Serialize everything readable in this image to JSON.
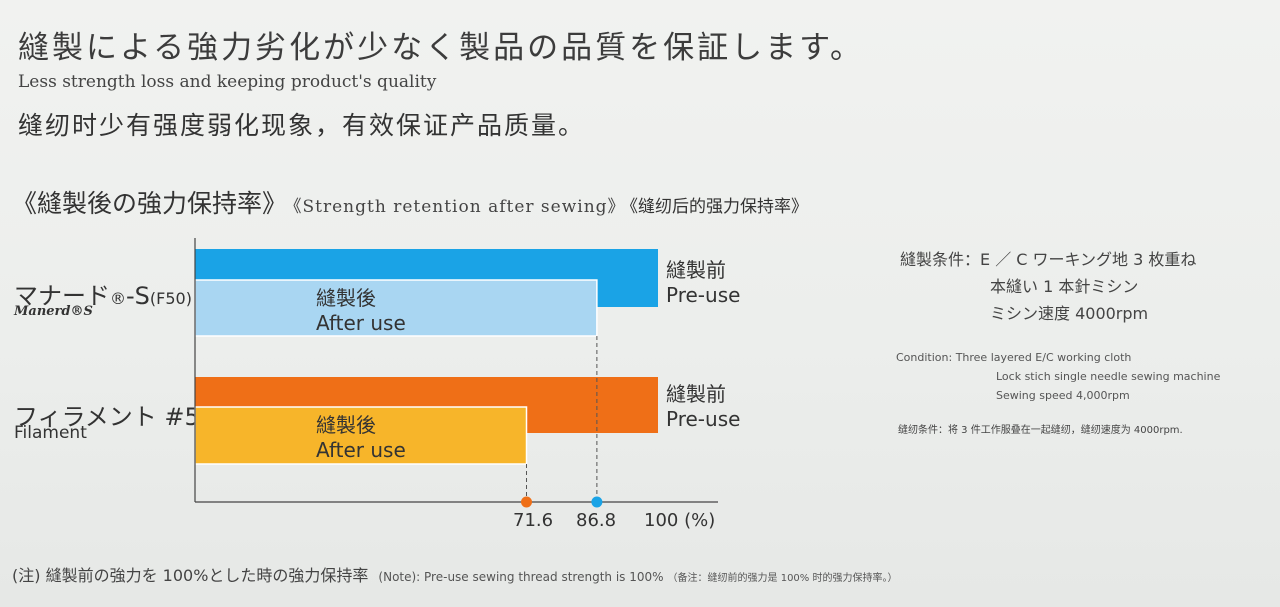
{
  "header": {
    "jp": "縫製による強力劣化が少なく製品の品質を保証します。",
    "en": "Less strength loss and keeping product's quality",
    "cn": "缝纫时少有强度弱化现象，有效保证产品质量。"
  },
  "section": {
    "jp": "《縫製後の強力保持率》",
    "en": "《Strength retention after sewing》",
    "cn": "《缝纫后的强力保持率》"
  },
  "chart_data": {
    "type": "bar",
    "orientation": "horizontal",
    "categories": [
      {
        "jp": "マナード",
        "mark": "®",
        "suffix": "-S",
        "sub": "(F50)",
        "en": "Manerd®S"
      },
      {
        "jp": "フィラメント #50",
        "en": "Filament"
      }
    ],
    "series": [
      {
        "name_jp": "縫製前",
        "name_en": "Pre-use",
        "values": [
          100,
          100
        ],
        "colors": [
          "#1aa3e6",
          "#ef6f17"
        ]
      },
      {
        "name_jp": "縫製後",
        "name_en": "After use",
        "values": [
          86.8,
          71.6
        ],
        "colors": [
          "#a9d6f2",
          "#f7b52a"
        ]
      }
    ],
    "x_ticks": [
      "71.6",
      "86.8",
      "100"
    ],
    "x_unit": "(%)",
    "xlim": [
      0,
      100
    ],
    "marker_colors": [
      "#ef6f17",
      "#1aa3e6"
    ]
  },
  "conditions": {
    "jp": [
      "縫製条件：E ／ C ワーキング地 3 枚重ね",
      "本縫い 1 本針ミシン",
      "ミシン速度 4000rpm"
    ],
    "en": [
      "Condition: Three layered E/C working cloth",
      "Lock stich single needle sewing machine",
      "Sewing speed 4,000rpm"
    ],
    "cn": "缝纫条件：将 3 件工作服叠在一起缝纫，缝纫速度为 4000rpm."
  },
  "note": {
    "jp": "(注) 縫製前の強力を 100%とした時の強力保持率",
    "en": "(Note): Pre-use sewing thread strength is 100%",
    "cn": "（备注：缝纫前的强力是 100% 时的强力保持率。）"
  }
}
